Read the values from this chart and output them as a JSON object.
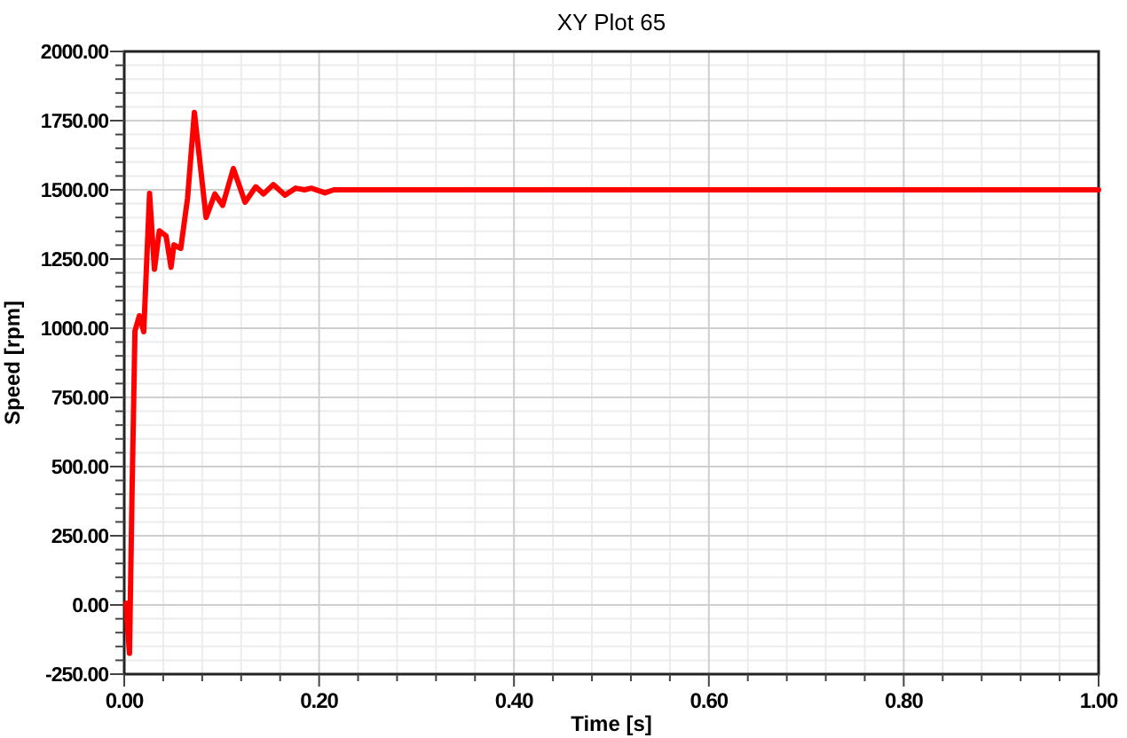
{
  "chart_data": {
    "type": "line",
    "title": "XY Plot 65",
    "xlabel": "Time [s]",
    "ylabel": "Speed [rpm]",
    "xlim": [
      0,
      1
    ],
    "ylim": [
      -250,
      2000
    ],
    "xticks": [
      {
        "value": 0,
        "label": "0.00"
      },
      {
        "value": 0.2,
        "label": "0.20"
      },
      {
        "value": 0.4,
        "label": "0.40"
      },
      {
        "value": 0.6,
        "label": "0.60"
      },
      {
        "value": 0.8,
        "label": "0.80"
      },
      {
        "value": 1,
        "label": "1.00"
      }
    ],
    "yticks": [
      {
        "value": -250,
        "label": "-250.00"
      },
      {
        "value": 0,
        "label": "0.00"
      },
      {
        "value": 250,
        "label": "250.00"
      },
      {
        "value": 500,
        "label": "500.00"
      },
      {
        "value": 750,
        "label": "750.00"
      },
      {
        "value": 1000,
        "label": "1000.00"
      },
      {
        "value": 1250,
        "label": "1250.00"
      },
      {
        "value": 1500,
        "label": "1500.00"
      },
      {
        "value": 1750,
        "label": "1750.00"
      },
      {
        "value": 2000,
        "label": "2000.00"
      }
    ],
    "grid": true,
    "line_style": "solid",
    "marker": "none",
    "series": [
      {
        "color": "#ff0000",
        "x": [
          0.002,
          0.003,
          0.0054,
          0.008,
          0.011,
          0.0155,
          0.02,
          0.026,
          0.031,
          0.036,
          0.043,
          0.048,
          0.051,
          0.058,
          0.065,
          0.072,
          0.084,
          0.093,
          0.101,
          0.112,
          0.124,
          0.135,
          0.143,
          0.153,
          0.165,
          0.176,
          0.185,
          0.192,
          0.206,
          0.215,
          0.3,
          0.5,
          0.7,
          0.9,
          1.0
        ],
        "values": [
          6,
          -60,
          -175,
          400,
          990,
          1045,
          987,
          1487,
          1213,
          1352,
          1333,
          1220,
          1301,
          1288,
          1470,
          1780,
          1400,
          1485,
          1444,
          1577,
          1455,
          1511,
          1485,
          1519,
          1481,
          1506,
          1500,
          1506,
          1489,
          1500,
          1500,
          1500,
          1500,
          1500,
          1500
        ]
      }
    ]
  }
}
